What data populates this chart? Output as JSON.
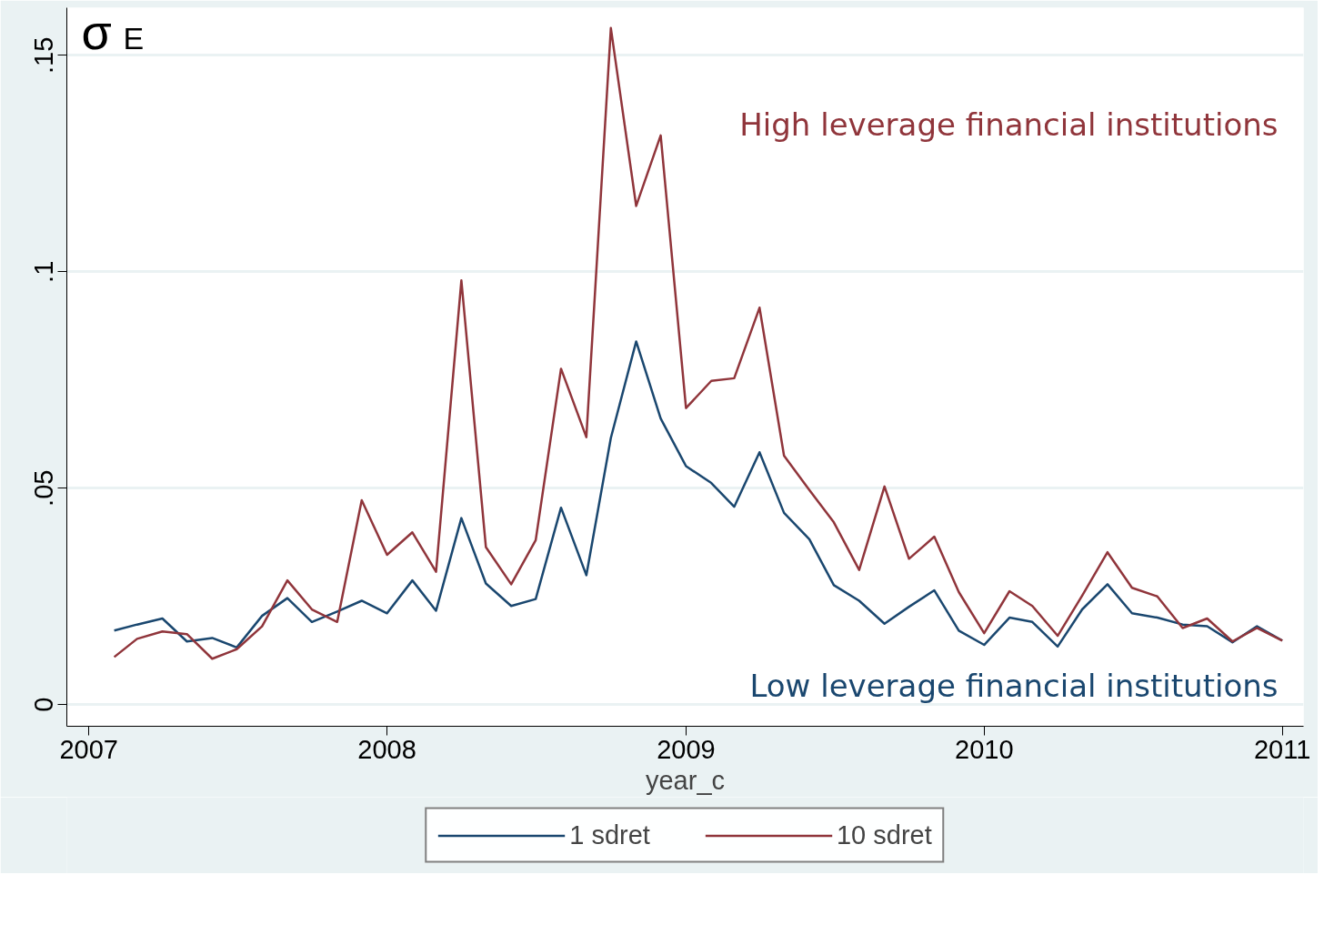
{
  "chart_data": {
    "type": "line",
    "xlabel": "year_c",
    "x": [
      "2007-02",
      "2007-03",
      "2007-04",
      "2007-05",
      "2007-06",
      "2007-07",
      "2007-08",
      "2007-09",
      "2007-10",
      "2007-11",
      "2007-12",
      "2008-01",
      "2008-02",
      "2008-03",
      "2008-04",
      "2008-05",
      "2008-06",
      "2008-07",
      "2008-08",
      "2008-09",
      "2008-10",
      "2008-11",
      "2008-12",
      "2009-01",
      "2009-02",
      "2009-03",
      "2009-04",
      "2009-05",
      "2009-06",
      "2009-07",
      "2009-08",
      "2009-09",
      "2009-10",
      "2009-11",
      "2009-12",
      "2010-01",
      "2010-02",
      "2010-03",
      "2010-04",
      "2010-05",
      "2010-06",
      "2010-07",
      "2010-08",
      "2010-09",
      "2010-10",
      "2010-11",
      "2010-12",
      "2011-01"
    ],
    "series": [
      {
        "name": "1 sdret",
        "color": "#1a476f",
        "values": [
          0.0171,
          0.0185,
          0.0199,
          0.0146,
          0.0154,
          0.0132,
          0.0205,
          0.0246,
          0.0191,
          0.0215,
          0.024,
          0.0211,
          0.0287,
          0.0217,
          0.0431,
          0.028,
          0.0228,
          0.0244,
          0.0455,
          0.0299,
          0.0616,
          0.0839,
          0.0661,
          0.0551,
          0.0512,
          0.0457,
          0.0583,
          0.0443,
          0.0382,
          0.0276,
          0.024,
          0.0187,
          0.0226,
          0.0264,
          0.0171,
          0.0138,
          0.0201,
          0.0191,
          0.0134,
          0.022,
          0.0278,
          0.0211,
          0.0201,
          0.0185,
          0.0181,
          0.0144,
          0.0181,
          0.0148
        ]
      },
      {
        "name": "10 sdret",
        "color": "#90353b",
        "values": [
          0.011,
          0.0152,
          0.0169,
          0.0163,
          0.0106,
          0.0128,
          0.0181,
          0.0287,
          0.022,
          0.0191,
          0.0472,
          0.0346,
          0.0398,
          0.0307,
          0.098,
          0.0364,
          0.0278,
          0.038,
          0.0776,
          0.0618,
          0.1563,
          0.1152,
          0.1315,
          0.0685,
          0.0748,
          0.0754,
          0.0917,
          0.0575,
          0.0496,
          0.0421,
          0.0311,
          0.0504,
          0.0337,
          0.0388,
          0.026,
          0.0165,
          0.0262,
          0.0228,
          0.0159,
          0.0252,
          0.0352,
          0.027,
          0.025,
          0.0177,
          0.0199,
          0.0146,
          0.0177,
          0.0148
        ]
      }
    ],
    "annotations": [
      "σ$_{E}$",
      "Low leverage financial institutions",
      "High leverage financial institutions"
    ],
    "xlim": [
      "2006-12-05",
      "2011-01-27"
    ],
    "xticks": [
      {
        "value": "2007",
        "label": "2007"
      },
      {
        "value": "2008",
        "label": "2008"
      },
      {
        "value": "2009",
        "label": "2009"
      },
      {
        "value": "2010",
        "label": "2010"
      },
      {
        "value": "2011",
        "label": "2011"
      }
    ],
    "ylim": [
      -0.005,
      0.161
    ],
    "yticks": [
      {
        "value": 0,
        "label": "0"
      },
      {
        "value": 0.05,
        "label": ".05"
      },
      {
        "value": 0.1,
        "label": ".1"
      },
      {
        "value": 0.15,
        "label": ".15"
      }
    ],
    "grid": "y",
    "legend": "bottom",
    "line_style": "solid",
    "marker": "none"
  }
}
